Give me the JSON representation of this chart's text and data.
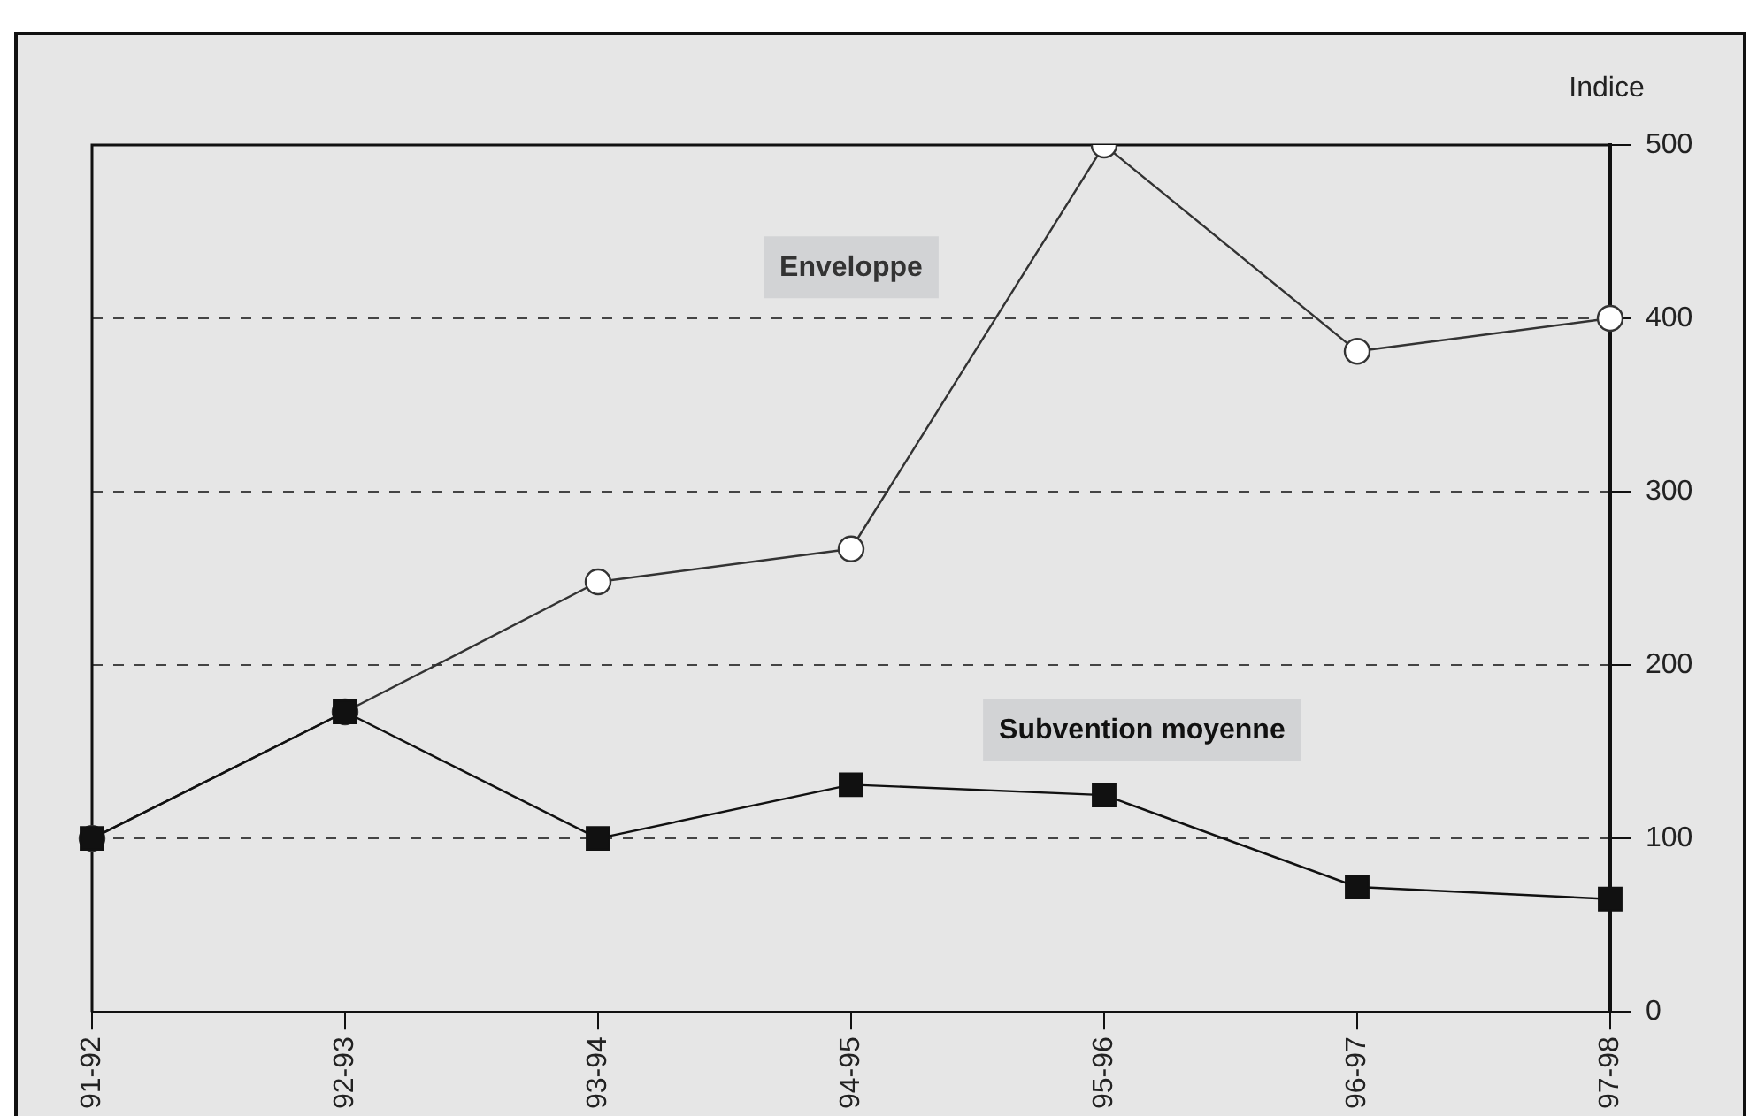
{
  "chart_data": {
    "type": "line",
    "ylabel": "Indice",
    "categories": [
      "91-92",
      "92-93",
      "93-94",
      "94-95",
      "95-96",
      "96-97",
      "97-98"
    ],
    "series": [
      {
        "name": "Enveloppe",
        "color": "#333333",
        "marker": "circle",
        "values": [
          100,
          173,
          248,
          267,
          500,
          381,
          400
        ]
      },
      {
        "name": "Subvention moyenne",
        "color": "#111111",
        "marker": "square",
        "values": [
          100,
          173,
          100,
          131,
          125,
          72,
          65
        ]
      }
    ],
    "ylim": [
      0,
      500
    ],
    "yticks": [
      0,
      100,
      200,
      300,
      400,
      500
    ],
    "grid": "y",
    "legend": false,
    "line_style": "solid"
  }
}
